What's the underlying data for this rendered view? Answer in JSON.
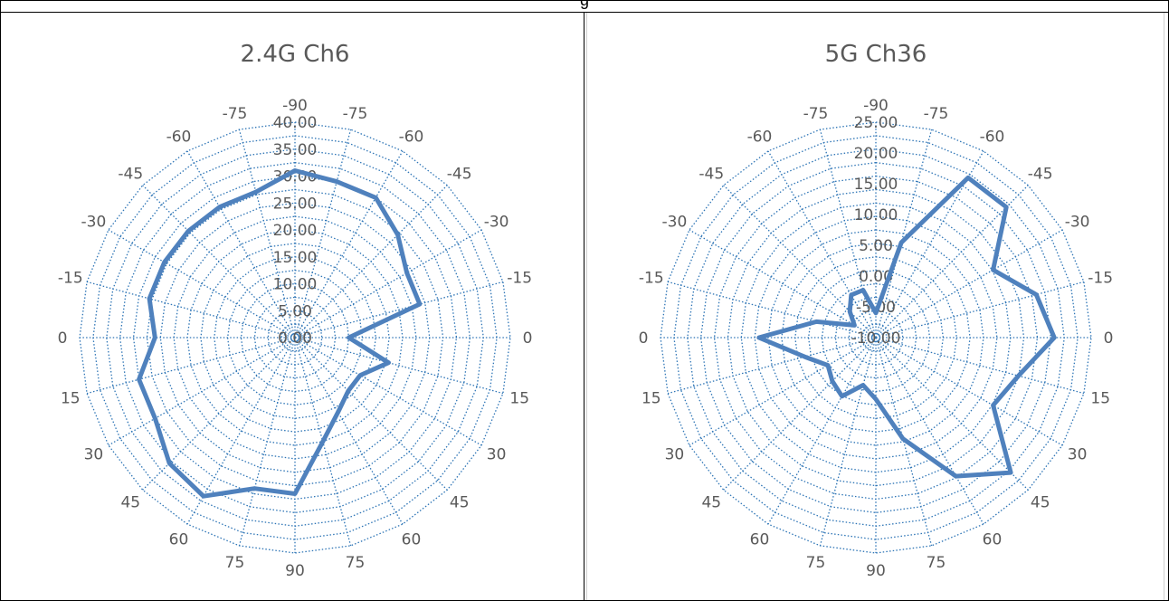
{
  "header": {
    "label": "g"
  },
  "chart_data": [
    {
      "type": "radar",
      "title": "2.4G Ch6",
      "angle_labels": [
        "-90",
        "-75",
        "-60",
        "-45",
        "-30",
        "-15",
        "0",
        "15",
        "30",
        "45",
        "60",
        "75",
        "90",
        "75",
        "60",
        "45",
        "30",
        "15",
        "0",
        "-15",
        "-30",
        "-45",
        "-60",
        "-75"
      ],
      "radial_ticks": [
        "0.00",
        "5.00",
        "10.00",
        "15.00",
        "20.00",
        "25.00",
        "30.00",
        "35.00",
        "40.00"
      ],
      "r_range": [
        0,
        40
      ],
      "grid": true,
      "series": [
        {
          "values": [
            31,
            30,
            30,
            27,
            24,
            24,
            10,
            18,
            14,
            14,
            16,
            20,
            29,
            29,
            34,
            33,
            30,
            30,
            26,
            28,
            28,
            28,
            28,
            28
          ]
        }
      ],
      "series_color": "#4f81bd"
    },
    {
      "type": "radar",
      "title": "5G Ch36",
      "angle_labels": [
        "-90",
        "-75",
        "-60",
        "-45",
        "-30",
        "-15",
        "0",
        "15",
        "30",
        "45",
        "60",
        "75",
        "90",
        "75",
        "60",
        "45",
        "30",
        "15",
        "0",
        "-15",
        "-30",
        "-45",
        "-60",
        "-75"
      ],
      "radial_ticks": [
        "-10.00",
        "-5.00",
        "0.00",
        "5.00",
        "10.00",
        "15.00",
        "20.00",
        "25.00"
      ],
      "r_range": [
        -10,
        25
      ],
      "grid": true,
      "series": [
        {
          "values": [
            -6,
            6,
            20,
            20,
            12,
            17,
            19,
            14,
            12,
            21,
            16,
            7,
            0,
            -2,
            1,
            0,
            -1,
            2,
            9,
            0,
            -6,
            -4,
            -2,
            -2
          ]
        }
      ],
      "series_color": "#4f81bd"
    }
  ]
}
